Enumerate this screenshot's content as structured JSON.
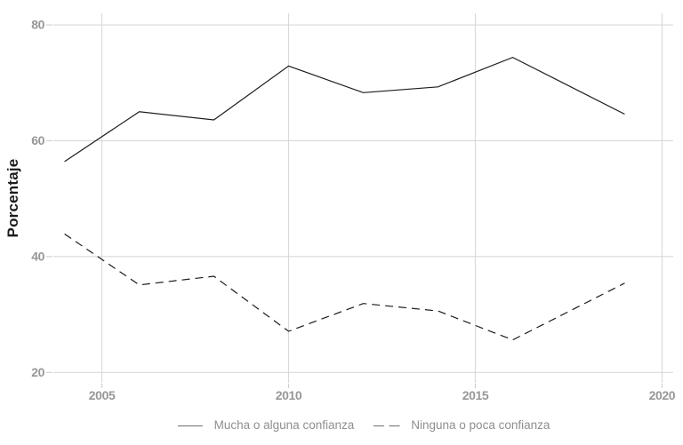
{
  "chart_data": {
    "type": "line",
    "title": "",
    "xlabel": "",
    "ylabel": "Porcentaje",
    "x": [
      2004,
      2006,
      2008,
      2010,
      2012,
      2014,
      2016,
      2019
    ],
    "series": [
      {
        "name": "Mucha o alguna confianza",
        "line_style": "solid",
        "values": [
          56.4,
          65.0,
          63.6,
          72.9,
          68.3,
          69.3,
          74.4,
          64.6
        ]
      },
      {
        "name": "Ninguna o poca confianza",
        "line_style": "dashed",
        "values": [
          43.9,
          35.1,
          36.6,
          27.1,
          31.9,
          30.6,
          25.6,
          35.4
        ]
      }
    ],
    "x_ticks": [
      2005,
      2010,
      2015,
      2020
    ],
    "y_ticks": [
      20,
      40,
      60,
      80
    ],
    "xlim": [
      2003.7,
      2020.3
    ],
    "ylim": [
      18.2,
      82
    ],
    "grid": true,
    "legend_position": "bottom",
    "colors": {
      "background": "#ffffff",
      "gridline": "#d9d9d9",
      "tick_mark": "#cfcfcf",
      "tick_label": "#979797",
      "axis_title": "#1c1c1c",
      "line": "#1c1c1c",
      "legend_text": "#8e8e8e",
      "legend_swatch": "#828282"
    }
  }
}
